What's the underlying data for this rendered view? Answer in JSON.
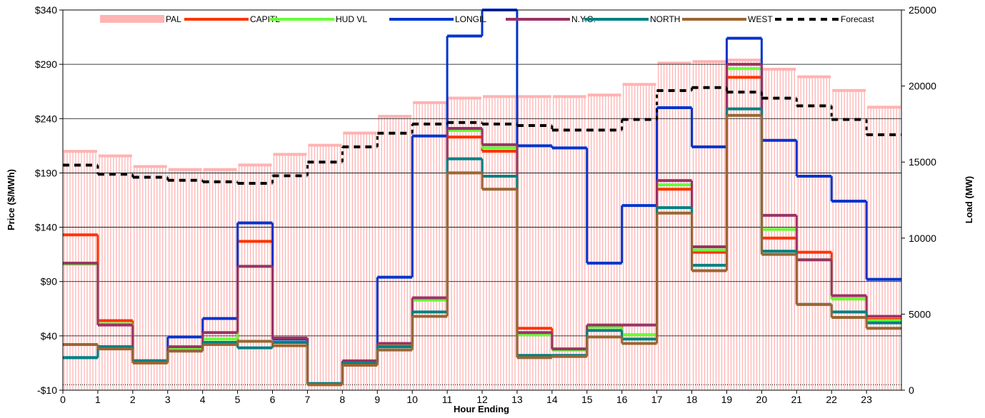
{
  "chart_data": {
    "type": "line",
    "xlabel": "Hour Ending",
    "ylabel": "Price ($/MWh)",
    "y2label": "Load (MW)",
    "ylim": [
      -10,
      340
    ],
    "y2lim": [
      0,
      25000
    ],
    "xlim": [
      0,
      24
    ],
    "x_ticks": [
      "0",
      "1",
      "2",
      "3",
      "4",
      "5",
      "6",
      "7",
      "8",
      "9",
      "10",
      "11",
      "12",
      "13",
      "14",
      "15",
      "16",
      "17",
      "18",
      "19",
      "20",
      "21",
      "22",
      "23"
    ],
    "y_ticks": [
      "-$10",
      "$40",
      "$90",
      "$140",
      "$190",
      "$240",
      "$290",
      "$340"
    ],
    "y2_ticks": [
      "0",
      "5000",
      "10000",
      "15000",
      "20000",
      "25000"
    ],
    "gridlines": [
      40,
      90,
      140,
      190,
      240,
      290
    ],
    "legend_position": "top",
    "series": [
      {
        "name": "PAL",
        "axis": "right",
        "style": "bars",
        "color": "#ffb3b3",
        "values": [
          15800,
          15500,
          14800,
          14600,
          14600,
          14900,
          15600,
          16200,
          17000,
          18100,
          19000,
          19300,
          19400,
          19400,
          19400,
          19500,
          20200,
          21600,
          21700,
          21800,
          21200,
          20700,
          19800,
          18700
        ]
      },
      {
        "name": "CAPITL",
        "axis": "left",
        "color": "#ff3300",
        "values": [
          133,
          54,
          17,
          29,
          34,
          127,
          37,
          -4,
          16,
          32,
          74,
          223,
          210,
          47,
          27,
          49,
          41,
          175,
          117,
          278,
          130,
          117,
          74,
          55
        ]
      },
      {
        "name": "HUD VL",
        "axis": "left",
        "color": "#66ff33",
        "values": [
          106,
          51,
          17,
          28,
          37,
          104,
          37,
          -4,
          15,
          31,
          73,
          229,
          213,
          41,
          27,
          48,
          41,
          179,
          119,
          286,
          138,
          110,
          74,
          54
        ]
      },
      {
        "name": "LONGIL",
        "axis": "left",
        "color": "#0033cc",
        "values": [
          20,
          30,
          17,
          39,
          56,
          144,
          37,
          -4,
          16,
          94,
          224,
          316,
          340,
          215,
          213,
          107,
          160,
          250,
          214,
          314,
          220,
          187,
          164,
          92
        ]
      },
      {
        "name": "N.Y.C.",
        "axis": "left",
        "color": "#993366",
        "values": [
          107,
          50,
          17,
          30,
          43,
          104,
          38,
          -4,
          17,
          33,
          75,
          231,
          216,
          43,
          28,
          50,
          50,
          183,
          122,
          290,
          151,
          110,
          77,
          58
        ]
      },
      {
        "name": "NORTH",
        "axis": "left",
        "color": "#008080",
        "values": [
          20,
          30,
          17,
          26,
          34,
          29,
          34,
          -4,
          15,
          30,
          62,
          203,
          187,
          22,
          22,
          45,
          37,
          158,
          105,
          249,
          118,
          69,
          62,
          52
        ]
      },
      {
        "name": "WEST",
        "axis": "left",
        "color": "#996633",
        "values": [
          32,
          28,
          15,
          26,
          32,
          35,
          31,
          -5,
          13,
          27,
          58,
          190,
          175,
          20,
          21,
          39,
          33,
          153,
          100,
          243,
          115,
          69,
          57,
          47
        ]
      },
      {
        "name": "Forecast",
        "axis": "right",
        "style": "dashed",
        "color": "#000000",
        "values": [
          14800,
          14200,
          14000,
          13800,
          13700,
          13600,
          14100,
          15000,
          16000,
          16900,
          17500,
          17600,
          17500,
          17400,
          17100,
          17100,
          17800,
          19700,
          19900,
          19600,
          19200,
          18700,
          17800,
          16800
        ]
      }
    ]
  }
}
